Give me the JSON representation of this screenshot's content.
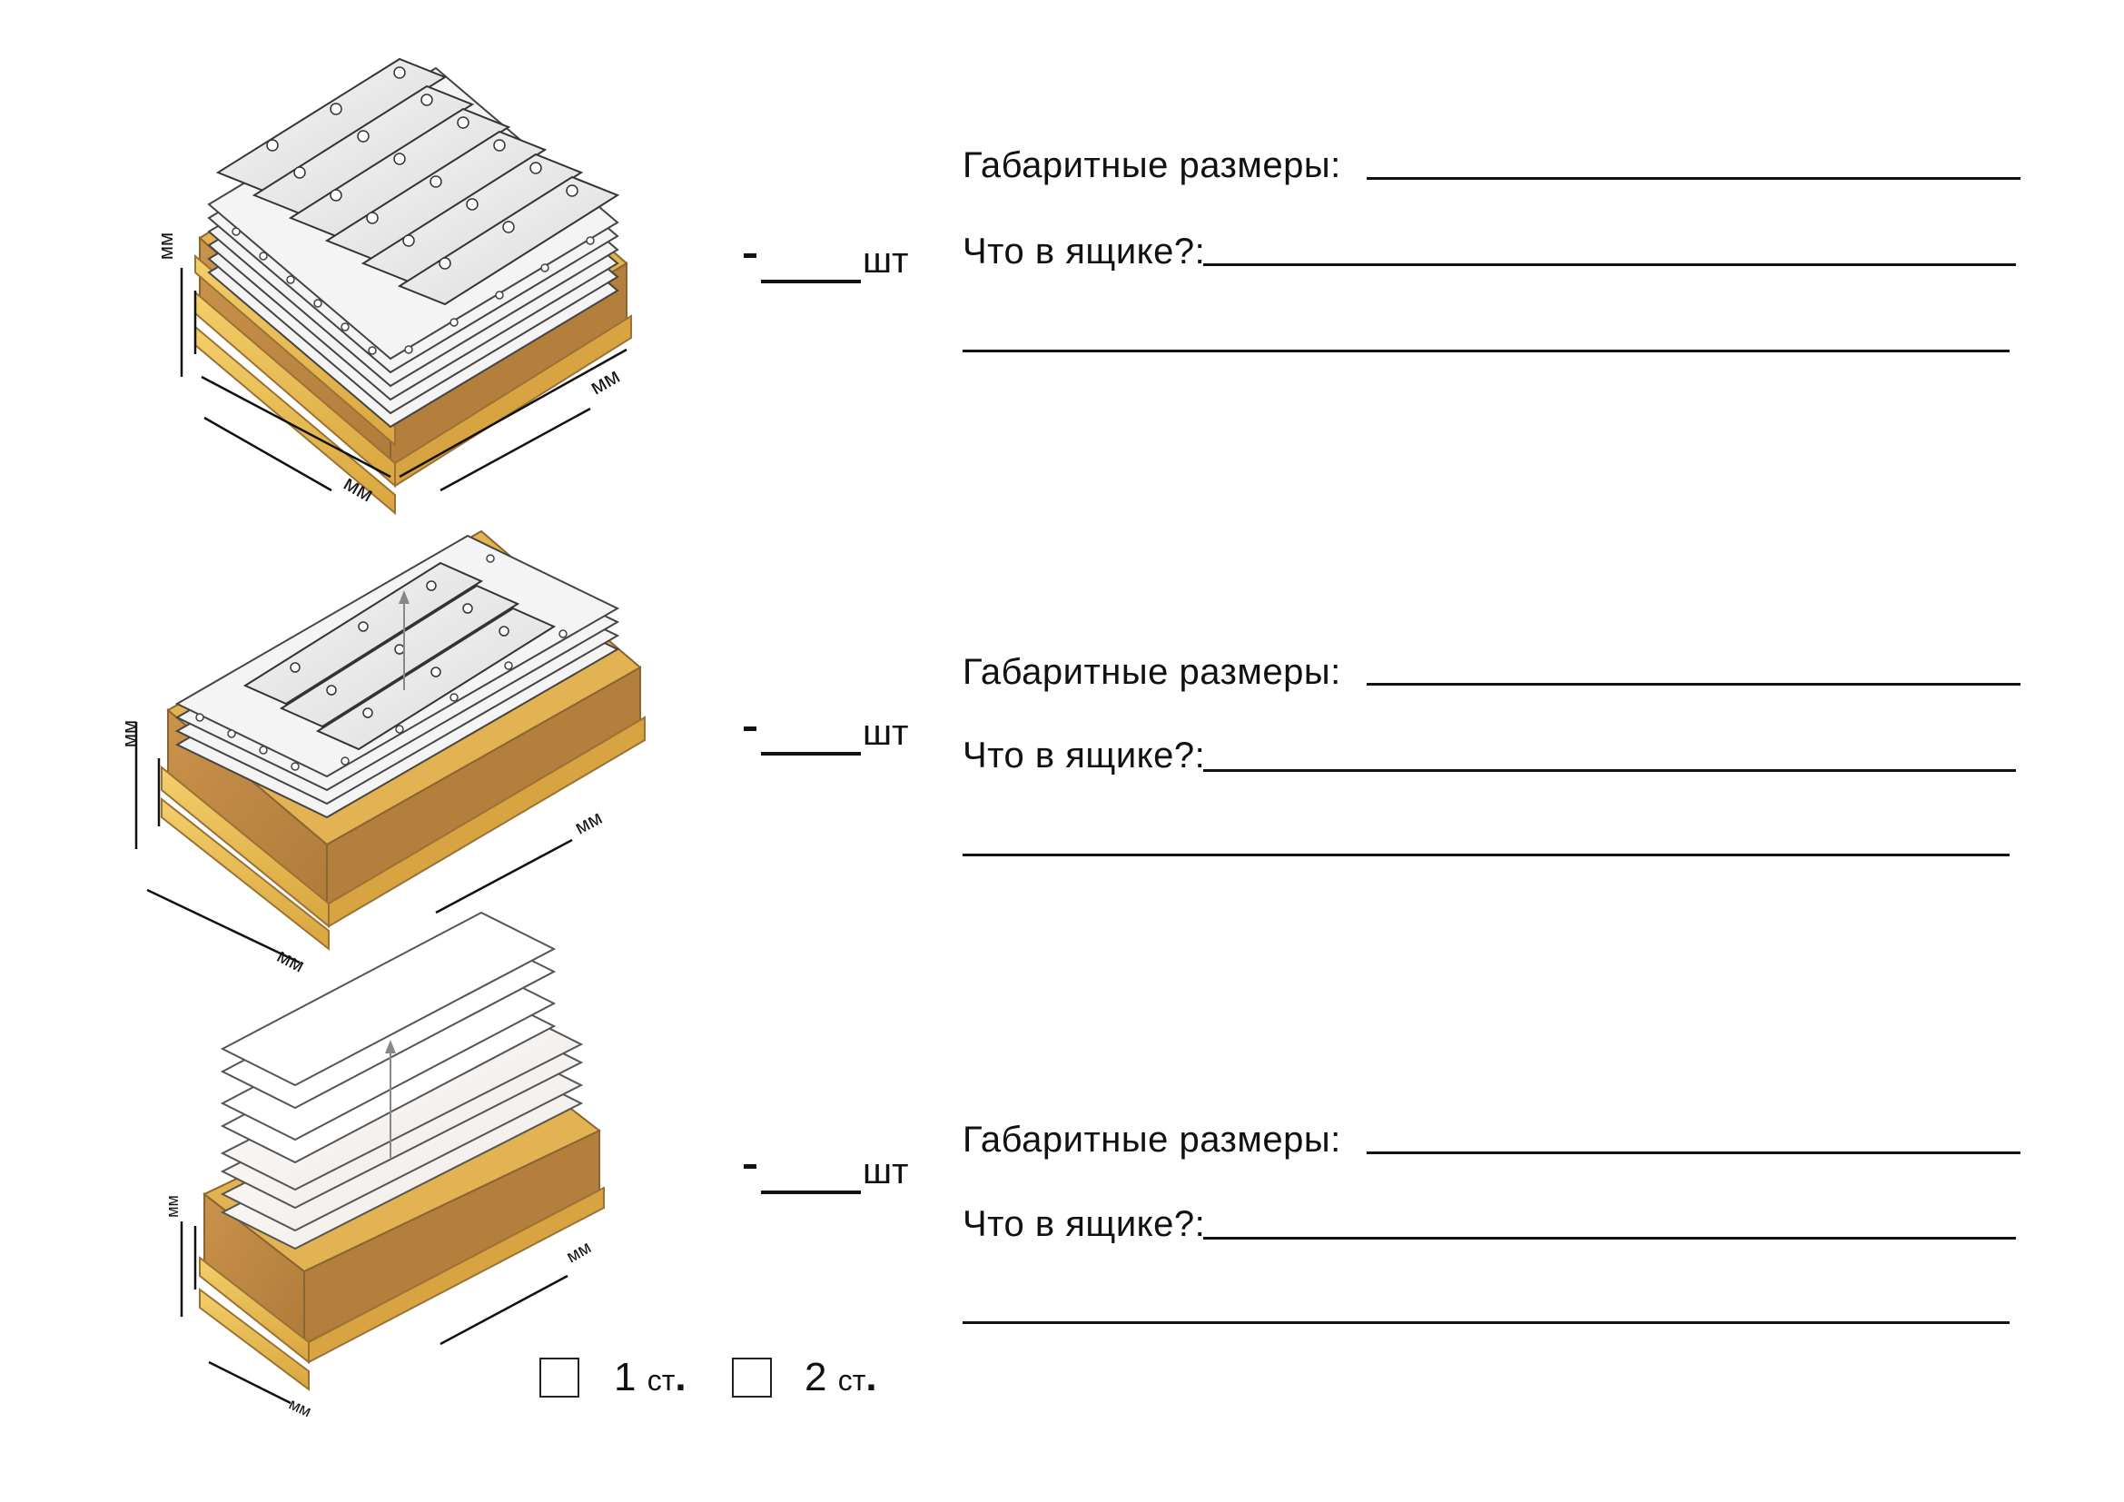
{
  "rows": [
    {
      "dims_label": "Габаритные размеры:",
      "contents_label": "Что в ящике?:",
      "qty_unit": "шт"
    },
    {
      "dims_label": "Габаритные размеры:",
      "contents_label": "Что в ящике?:",
      "qty_unit": "шт"
    },
    {
      "dims_label": "Габаритные размеры:",
      "contents_label": "Что в ящике?:",
      "qty_unit": "шт"
    }
  ],
  "dimension_unit": "мм",
  "tiers": [
    {
      "number": "1",
      "abbr": "ст"
    },
    {
      "number": "2",
      "abbr": "ст"
    }
  ],
  "colors": {
    "crate_top": "#E8B94E",
    "crate_side": "#C7914A",
    "crate_inner": "#B8843E",
    "plate": "#F2F2F2",
    "line": "#111111"
  }
}
